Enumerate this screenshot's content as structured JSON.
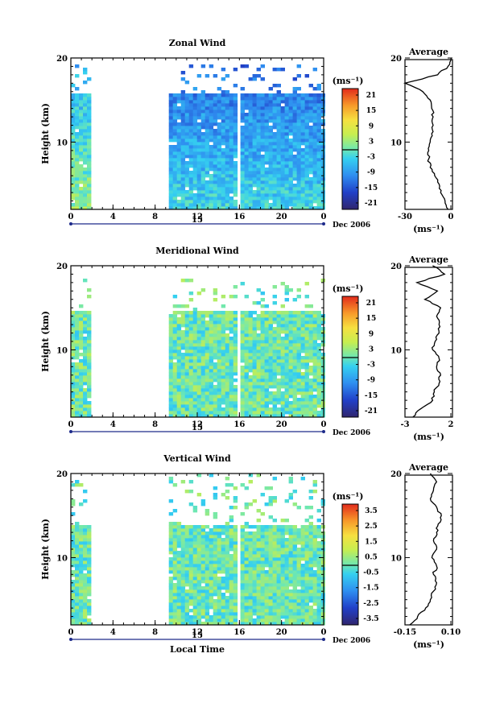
{
  "chart_data": [
    {
      "type": "heatmap",
      "title": "Zonal Wind",
      "ylabel": "Height (km)",
      "xlabel": "",
      "xticks": [
        "0",
        "4",
        "8",
        "12",
        "16",
        "20",
        "0"
      ],
      "yticks": [
        "10",
        "20"
      ],
      "ylim": [
        2,
        20
      ],
      "date_marker": "15",
      "date_label": "Dec 2006",
      "data_periods": [
        [
          0,
          1.7
        ],
        [
          9.3,
          15.8
        ],
        [
          16.1,
          24
        ]
      ],
      "colorbar": {
        "unit": "(ms⁻¹)",
        "ticks": [
          "21",
          "15",
          "9",
          "3",
          "-3",
          "-9",
          "-15",
          "-21"
        ],
        "range": [
          -24,
          24
        ]
      },
      "field": {
        "base": -8,
        "gradient": -0.6,
        "noise": 4,
        "top_km": 15.5,
        "sparse_above": 16
      },
      "average_panel": {
        "title": "Average",
        "xticks": [
          "-30",
          "0"
        ],
        "xlim": [
          -30,
          2
        ],
        "xlabel": "(ms⁻¹)",
        "yticks": [
          "10",
          "20"
        ],
        "profile": {
          "heights": [
            2,
            3,
            4,
            5,
            6,
            7,
            8,
            9,
            10,
            11,
            12,
            13,
            14,
            15,
            16,
            17,
            18,
            19,
            20
          ],
          "values": [
            -1,
            -3,
            -6,
            -7,
            -10,
            -13,
            -14,
            -14,
            -13,
            -12,
            -11,
            -11,
            -12,
            -13,
            -18,
            -30,
            -8,
            -1,
            1
          ]
        }
      }
    },
    {
      "type": "heatmap",
      "title": "Meridional Wind",
      "ylabel": "Height (km)",
      "xlabel": "",
      "xticks": [
        "0",
        "4",
        "8",
        "12",
        "16",
        "20",
        "0"
      ],
      "yticks": [
        "10",
        "20"
      ],
      "ylim": [
        2,
        20
      ],
      "date_marker": "15",
      "date_label": "Dec 2006",
      "data_periods": [
        [
          0,
          1.7
        ],
        [
          9.3,
          15.8
        ],
        [
          16.1,
          24
        ]
      ],
      "colorbar": {
        "unit": "(ms⁻¹)",
        "ticks": [
          "21",
          "15",
          "9",
          "3",
          "-3",
          "-9",
          "-15",
          "-21"
        ],
        "range": [
          -24,
          24
        ]
      },
      "field": {
        "base": 0,
        "gradient": 0,
        "noise": 5,
        "top_km": 14.5,
        "sparse_above": 15
      },
      "average_panel": {
        "title": "Average",
        "xticks": [
          "-3",
          "2"
        ],
        "xlim": [
          -3.5,
          2.5
        ],
        "xlabel": "(ms⁻¹)",
        "yticks": [
          "10",
          "20"
        ],
        "profile": {
          "heights": [
            2,
            3,
            4,
            5,
            6,
            7,
            8,
            9,
            10,
            11,
            12,
            13,
            14,
            15,
            16,
            17,
            18,
            19,
            20
          ],
          "values": [
            -2.5,
            -1.5,
            0,
            0.2,
            0.8,
            1,
            0.5,
            0.8,
            0,
            0.3,
            0.8,
            0.8,
            0.5,
            1,
            -1,
            0.6,
            -2,
            1.5,
            0
          ]
        }
      }
    },
    {
      "type": "heatmap",
      "title": "Vertical Wind",
      "ylabel": "Height (km)",
      "xlabel": "Local Time",
      "xticks": [
        "0",
        "4",
        "8",
        "12",
        "16",
        "20",
        "0"
      ],
      "yticks": [
        "10",
        "20"
      ],
      "ylim": [
        2,
        20
      ],
      "date_marker": "15",
      "date_label": "Dec 2006",
      "data_periods": [
        [
          0,
          1.7
        ],
        [
          9.3,
          15.8
        ],
        [
          16.1,
          24
        ]
      ],
      "colorbar": {
        "unit": "(ms⁻¹)",
        "ticks": [
          "3.5",
          "2.5",
          "1.5",
          "0.5",
          "-0.5",
          "-1.5",
          "-2.5",
          "-3.5"
        ],
        "range": [
          -4,
          4
        ]
      },
      "field": {
        "base": 0,
        "gradient": 0,
        "noise": 0.8,
        "top_km": 19.5,
        "sparse_above": 14
      },
      "average_panel": {
        "title": "Average",
        "xticks": [
          "-0.15",
          "0.10"
        ],
        "xlim": [
          -0.18,
          0.12
        ],
        "xlabel": "(ms⁻¹)",
        "yticks": [
          "10",
          "20"
        ],
        "profile": {
          "heights": [
            2,
            3,
            4,
            5,
            6,
            7,
            8,
            9,
            10,
            11,
            12,
            13,
            14,
            15,
            16,
            17,
            18,
            19,
            20
          ],
          "values": [
            -0.15,
            -0.1,
            -0.05,
            -0.02,
            0,
            0.02,
            0,
            0.02,
            -0.01,
            0.02,
            0,
            0.02,
            0.03,
            0.05,
            0.02,
            -0.02,
            0,
            0.02,
            -0.02
          ]
        }
      }
    }
  ]
}
